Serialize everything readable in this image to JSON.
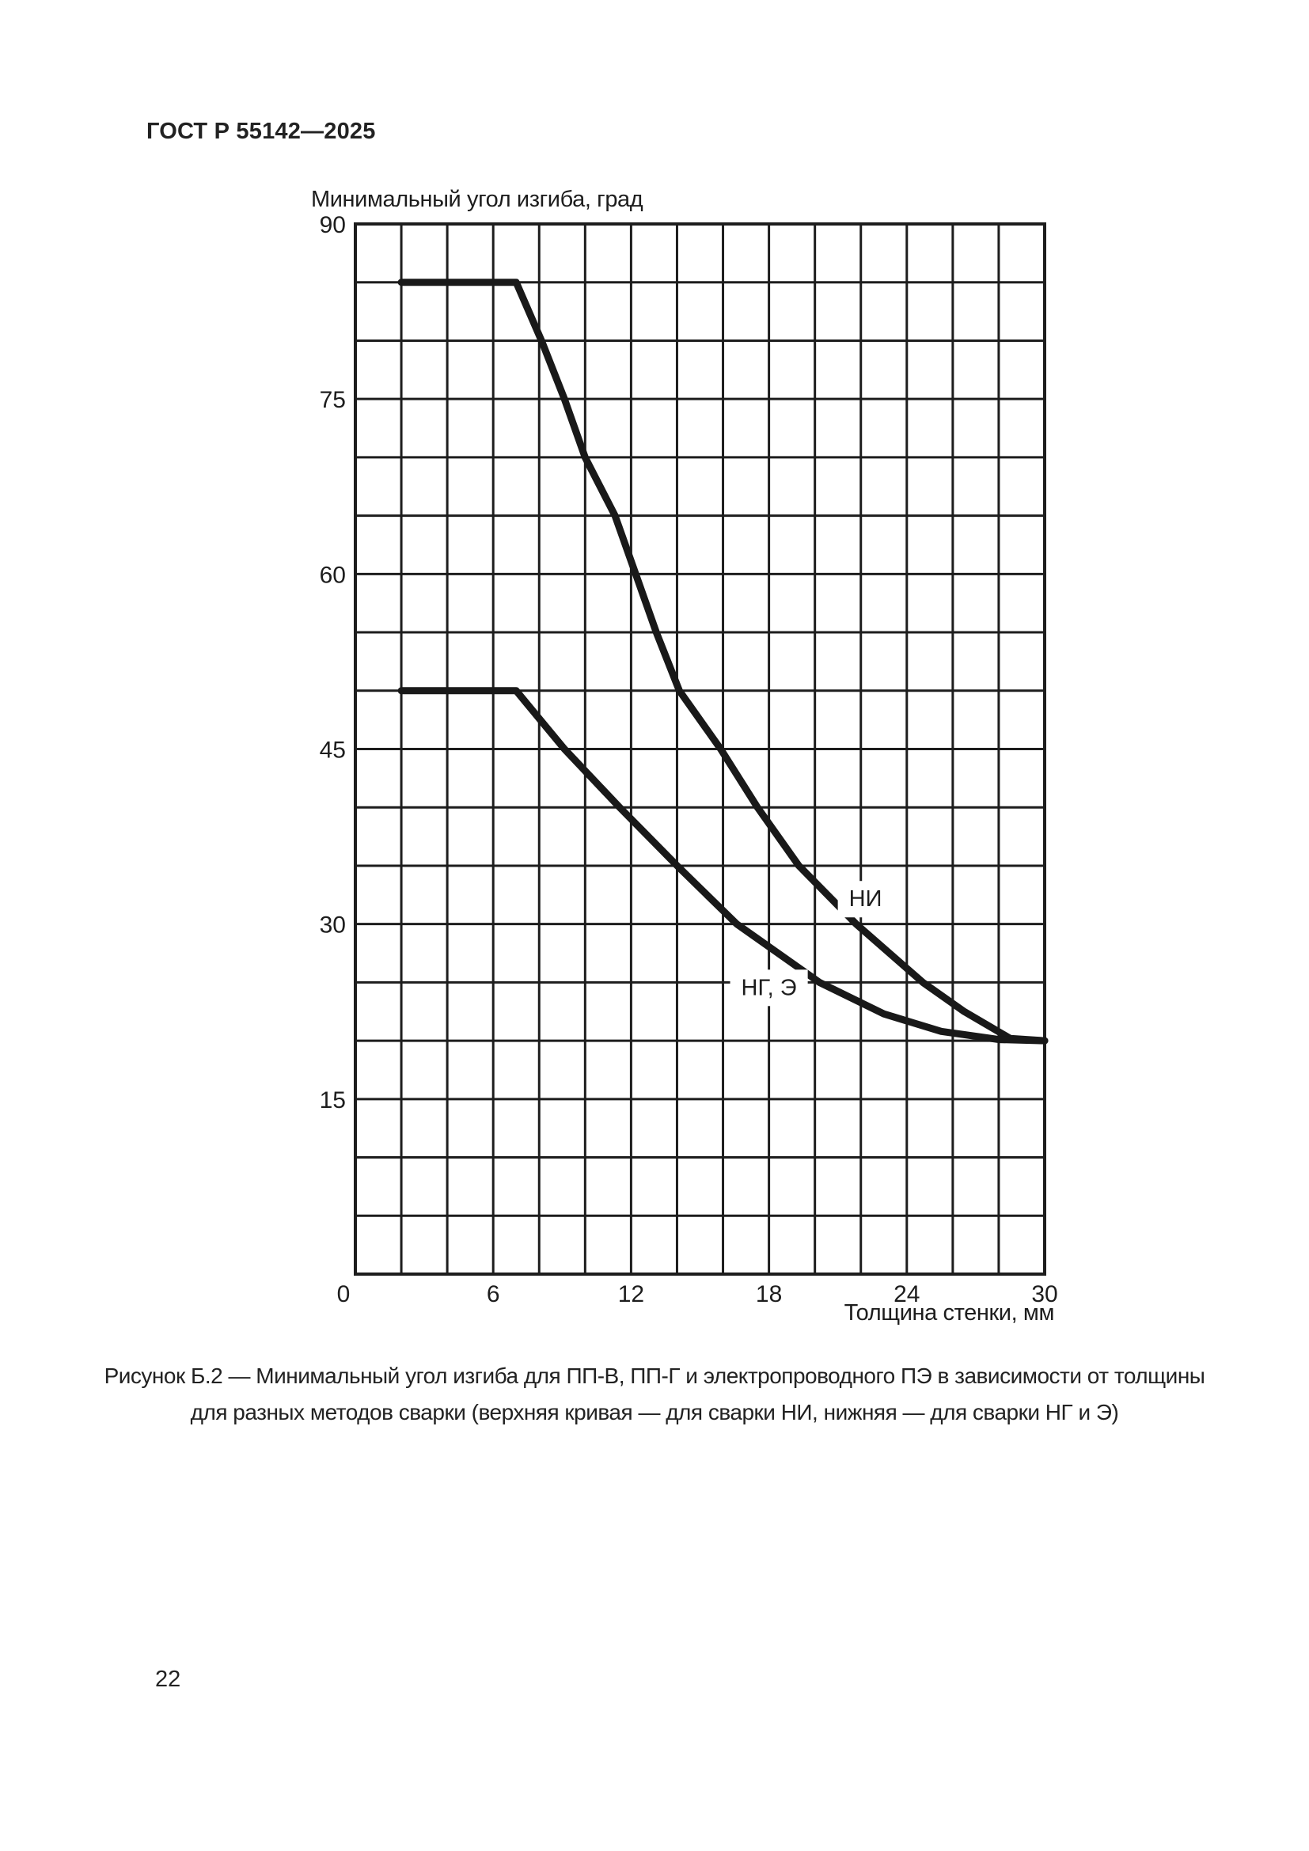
{
  "page": {
    "header_title": "ГОСТ Р 55142—2025",
    "page_number": "22"
  },
  "chart_data": {
    "type": "line",
    "title": "Минимальный угол изгиба, град",
    "xlabel": "Толщина стенки, мм",
    "ylabel": "Минимальный угол изгиба, град",
    "xlim": [
      0,
      30
    ],
    "ylim": [
      0,
      90
    ],
    "x_grid_step": 2,
    "y_grid_step": 5,
    "grid": true,
    "x_ticks": [
      0,
      6,
      12,
      18,
      24,
      30
    ],
    "y_ticks": [
      15,
      30,
      45,
      60,
      75,
      90
    ],
    "legend_position": "inline",
    "series": [
      {
        "name": "НИ",
        "label": "НИ",
        "label_pos": [
          22.2,
          32.2
        ],
        "points": [
          [
            2,
            85
          ],
          [
            7,
            85
          ],
          [
            8.1,
            80
          ],
          [
            9.1,
            75
          ],
          [
            10,
            70
          ],
          [
            11.3,
            65
          ],
          [
            12.2,
            60
          ],
          [
            13.1,
            55
          ],
          [
            14.1,
            50
          ],
          [
            15.9,
            45
          ],
          [
            17.5,
            40
          ],
          [
            19.3,
            35
          ],
          [
            21.8,
            30
          ],
          [
            24.7,
            25
          ],
          [
            26.5,
            22.5
          ],
          [
            28.5,
            20.2
          ],
          [
            30,
            20
          ]
        ]
      },
      {
        "name": "НГ, Э",
        "label": "НГ, Э",
        "label_pos": [
          18.0,
          24.6
        ],
        "points": [
          [
            2,
            50
          ],
          [
            7,
            50
          ],
          [
            9.1,
            45
          ],
          [
            11.5,
            40
          ],
          [
            14,
            35
          ],
          [
            16.6,
            30
          ],
          [
            20.2,
            25
          ],
          [
            23,
            22.3
          ],
          [
            25.5,
            20.8
          ],
          [
            28,
            20.1
          ],
          [
            30,
            20
          ]
        ]
      }
    ]
  },
  "caption": {
    "line1": "Рисунок Б.2 — Минимальный угол изгиба для ПП-В, ПП-Г и электропроводного ПЭ в зависимости от толщины",
    "line2": "для разных методов сварки (верхняя кривая — для сварки НИ, нижняя — для сварки НГ и Э)"
  }
}
